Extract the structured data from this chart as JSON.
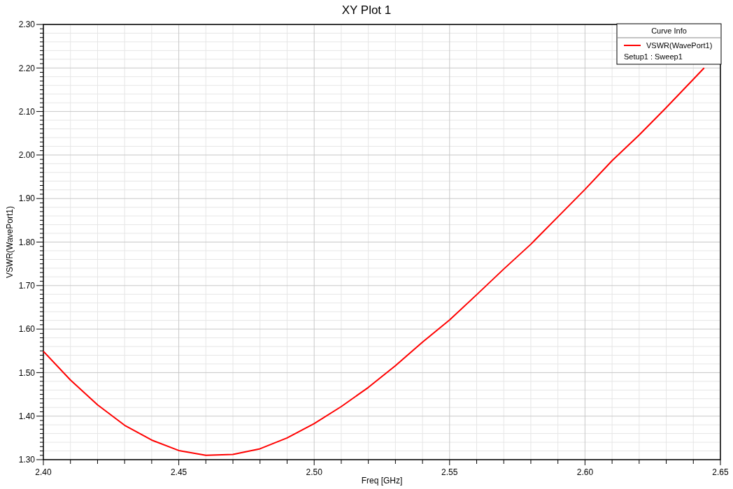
{
  "chart_data": {
    "type": "line",
    "title": "XY Plot 1",
    "xlabel": "Freq [GHz]",
    "ylabel": "VSWR(WavePort1)",
    "legend_title": "Curve Info",
    "legend": "top right",
    "grid": true,
    "x": [
      2.4,
      2.41,
      2.42,
      2.43,
      2.44,
      2.45,
      2.46,
      2.47,
      2.48,
      2.49,
      2.5,
      2.51,
      2.52,
      2.53,
      2.54,
      2.55,
      2.56,
      2.57,
      2.58,
      2.59,
      2.6,
      2.61,
      2.62,
      2.63,
      2.64,
      2.644
    ],
    "series": [
      {
        "name": "VSWR(WavePort1)",
        "color": "#ff0000",
        "values": [
          1.549,
          1.483,
          1.426,
          1.379,
          1.345,
          1.321,
          1.31,
          1.312,
          1.325,
          1.35,
          1.383,
          1.422,
          1.466,
          1.516,
          1.57,
          1.621,
          1.679,
          1.738,
          1.795,
          1.858,
          1.921,
          1.987,
          2.046,
          2.109,
          2.174,
          2.2
        ]
      }
    ],
    "annotations": [
      "Setup1 : Sweep1"
    ],
    "xlim": [
      2.4,
      2.65
    ],
    "xticks": [
      {
        "value": 2.4,
        "label": "2.40"
      },
      {
        "value": 2.45,
        "label": "2.45"
      },
      {
        "value": 2.5,
        "label": "2.50"
      },
      {
        "value": 2.55,
        "label": "2.55"
      },
      {
        "value": 2.6,
        "label": "2.60"
      },
      {
        "value": 2.65,
        "label": "2.65"
      }
    ],
    "ylim": [
      1.3,
      2.3
    ],
    "yticks": [
      {
        "value": 1.3,
        "label": "1.30"
      },
      {
        "value": 1.4,
        "label": "1.40"
      },
      {
        "value": 1.5,
        "label": "1.50"
      },
      {
        "value": 1.6,
        "label": "1.60"
      },
      {
        "value": 1.7,
        "label": "1.70"
      },
      {
        "value": 1.8,
        "label": "1.80"
      },
      {
        "value": 1.9,
        "label": "1.90"
      },
      {
        "value": 2.0,
        "label": "2.00"
      },
      {
        "value": 2.1,
        "label": "2.10"
      },
      {
        "value": 2.2,
        "label": "2.20"
      },
      {
        "value": 2.3,
        "label": "2.30"
      }
    ]
  }
}
